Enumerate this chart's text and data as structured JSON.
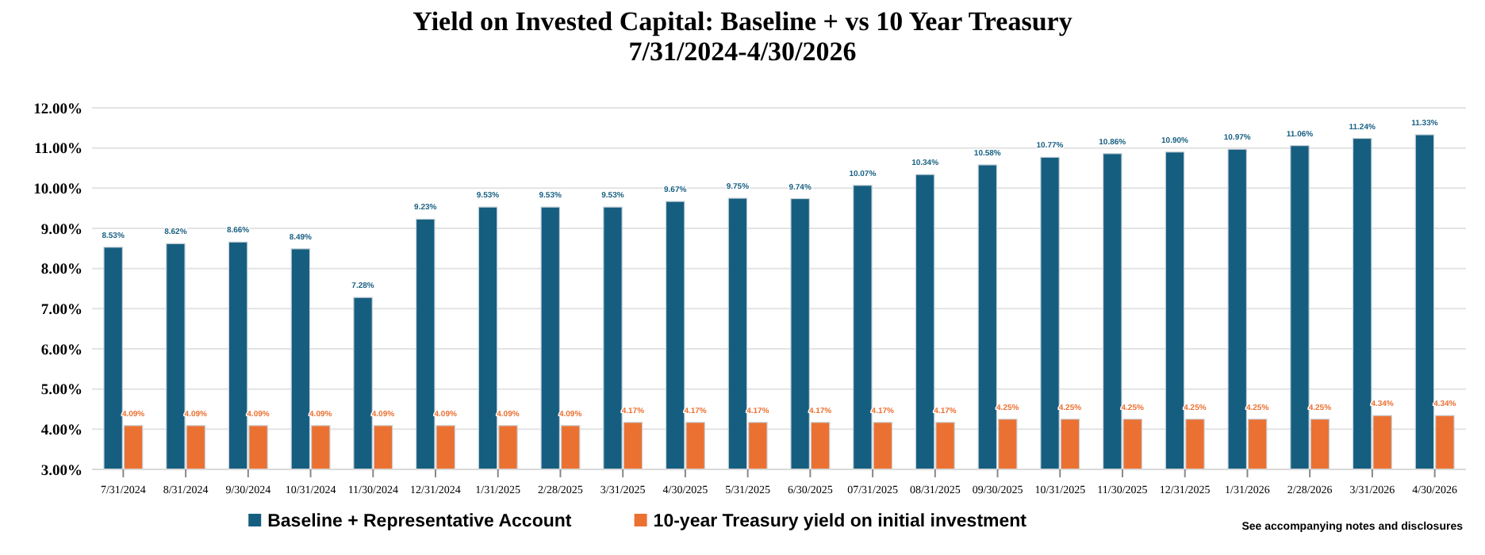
{
  "chart_data": {
    "type": "bar",
    "title": "Yield on Invested Capital:  Baseline + vs 10 Year Treasury",
    "subtitle": "7/31/2024-4/30/2026",
    "categories": [
      "7/31/2024",
      "8/31/2024",
      "9/30/2024",
      "10/31/2024",
      "11/30/2024",
      "12/31/2024",
      "1/31/2025",
      "2/28/2025",
      "3/31/2025",
      "4/30/2025",
      "5/31/2025",
      "6/30/2025",
      "07/31/2025",
      "08/31/2025",
      "09/30/2025",
      "10/31/2025",
      "11/30/2025",
      "12/31/2025",
      "1/31/2026",
      "2/28/2026",
      "3/31/2026",
      "4/30/2026"
    ],
    "series": [
      {
        "name": "Baseline + Representative Account",
        "color": "#165e80",
        "values": [
          8.53,
          8.62,
          8.66,
          8.49,
          7.28,
          9.23,
          9.53,
          9.53,
          9.53,
          9.67,
          9.75,
          9.74,
          10.07,
          10.34,
          10.58,
          10.77,
          10.86,
          10.9,
          10.97,
          11.06,
          11.24,
          11.33
        ],
        "value_labels": [
          "8.53%",
          "8.62%",
          "8.66%",
          "8.49%",
          "7.28%",
          "9.23%",
          "9.53%",
          "9.53%",
          "9.53%",
          "9.67%",
          "9.75%",
          "9.74%",
          "10.07%",
          "10.34%",
          "10.58%",
          "10.77%",
          "10.86%",
          "10.90%",
          "10.97%",
          "11.06%",
          "11.24%",
          "11.33%"
        ]
      },
      {
        "name": "10-year Treasury yield on initial investment",
        "color": "#eb7132",
        "values": [
          4.09,
          4.09,
          4.09,
          4.09,
          4.09,
          4.09,
          4.09,
          4.09,
          4.17,
          4.17,
          4.17,
          4.17,
          4.17,
          4.17,
          4.25,
          4.25,
          4.25,
          4.25,
          4.25,
          4.25,
          4.34,
          4.34
        ],
        "value_labels": [
          "4.09%",
          "4.09%",
          "4.09%",
          "4.09%",
          "4.09%",
          "4.09%",
          "4.09%",
          "4.09%",
          "4.17%",
          "4.17%",
          "4.17%",
          "4.17%",
          "4.17%",
          "4.17%",
          "4.25%",
          "4.25%",
          "4.25%",
          "4.25%",
          "4.25%",
          "4.25%",
          "4.34%",
          "4.34%"
        ]
      }
    ],
    "ylim": [
      3,
      12
    ],
    "yticks": [
      {
        "value": 3,
        "label": "3.00%"
      },
      {
        "value": 4,
        "label": "4.00%"
      },
      {
        "value": 5,
        "label": "5.00%"
      },
      {
        "value": 6,
        "label": "6.00%"
      },
      {
        "value": 7,
        "label": "7.00%"
      },
      {
        "value": 8,
        "label": "8.00%"
      },
      {
        "value": 9,
        "label": "9.00%"
      },
      {
        "value": 10,
        "label": "10.00%"
      },
      {
        "value": 11,
        "label": "11.00%"
      },
      {
        "value": 12,
        "label": "12.00%"
      }
    ],
    "grid": "y",
    "legend": "bottom",
    "annotations": [
      "See accompanying notes and disclosures"
    ]
  }
}
